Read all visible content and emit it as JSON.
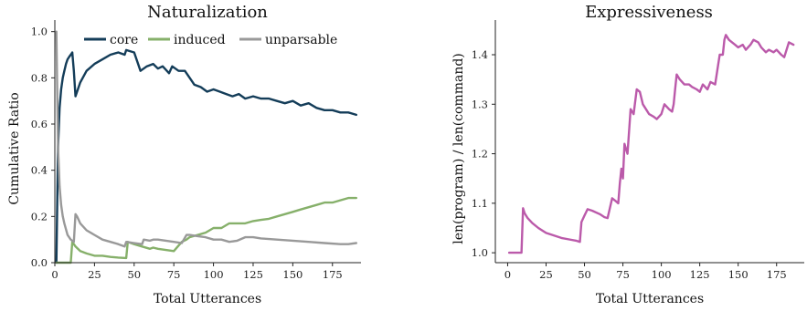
{
  "chart_data": [
    {
      "type": "line",
      "title": "Naturalization",
      "xlabel": "Total Utterances",
      "ylabel": "Cumulative Ratio",
      "xlim": [
        0,
        193
      ],
      "ylim": [
        0,
        1.05
      ],
      "xticks": [
        0,
        25,
        50,
        75,
        100,
        125,
        150,
        175
      ],
      "yticks": [
        0.0,
        0.2,
        0.4,
        0.6,
        0.8,
        1.0
      ],
      "grid": false,
      "legend_position": "top",
      "series": [
        {
          "name": "core",
          "color": "#143d59",
          "x": [
            1,
            2,
            3,
            4,
            5,
            6,
            7,
            8,
            9,
            10,
            11,
            12,
            13,
            16,
            20,
            25,
            30,
            35,
            40,
            44,
            45,
            50,
            54,
            58,
            62,
            65,
            68,
            72,
            74,
            78,
            82,
            86,
            88,
            92,
            96,
            100,
            104,
            108,
            112,
            116,
            120,
            125,
            130,
            135,
            140,
            145,
            150,
            155,
            160,
            165,
            170,
            175,
            180,
            185,
            190
          ],
          "y": [
            0.0,
            0.5,
            0.67,
            0.75,
            0.8,
            0.83,
            0.86,
            0.88,
            0.89,
            0.9,
            0.91,
            0.83,
            0.72,
            0.78,
            0.83,
            0.86,
            0.88,
            0.9,
            0.91,
            0.9,
            0.92,
            0.91,
            0.83,
            0.85,
            0.86,
            0.84,
            0.85,
            0.82,
            0.85,
            0.83,
            0.83,
            0.79,
            0.77,
            0.76,
            0.74,
            0.75,
            0.74,
            0.73,
            0.72,
            0.73,
            0.71,
            0.72,
            0.71,
            0.71,
            0.7,
            0.69,
            0.7,
            0.68,
            0.69,
            0.67,
            0.66,
            0.66,
            0.65,
            0.65,
            0.64
          ]
        },
        {
          "name": "induced",
          "color": "#86b06a",
          "x": [
            1,
            5,
            10,
            11,
            12,
            13,
            16,
            20,
            25,
            30,
            35,
            40,
            45,
            46,
            50,
            55,
            60,
            62,
            65,
            70,
            75,
            80,
            83,
            85,
            90,
            95,
            100,
            105,
            110,
            115,
            120,
            125,
            130,
            135,
            140,
            145,
            150,
            155,
            160,
            165,
            170,
            175,
            180,
            185,
            190
          ],
          "y": [
            0.0,
            0.0,
            0.0,
            0.09,
            0.08,
            0.07,
            0.05,
            0.04,
            0.03,
            0.03,
            0.025,
            0.022,
            0.02,
            0.09,
            0.08,
            0.07,
            0.06,
            0.065,
            0.06,
            0.055,
            0.05,
            0.09,
            0.1,
            0.11,
            0.12,
            0.13,
            0.15,
            0.15,
            0.17,
            0.17,
            0.17,
            0.18,
            0.185,
            0.19,
            0.2,
            0.21,
            0.22,
            0.23,
            0.24,
            0.25,
            0.26,
            0.26,
            0.27,
            0.28,
            0.28
          ]
        },
        {
          "name": "unparsable",
          "color": "#999999",
          "x": [
            1,
            2,
            3,
            4,
            5,
            6,
            8,
            10,
            12,
            13,
            14,
            16,
            20,
            25,
            30,
            35,
            40,
            44,
            45,
            50,
            55,
            56,
            60,
            62,
            65,
            70,
            75,
            80,
            83,
            85,
            90,
            95,
            100,
            105,
            110,
            115,
            120,
            125,
            130,
            140,
            150,
            160,
            170,
            180,
            185,
            190
          ],
          "y": [
            1.0,
            0.5,
            0.33,
            0.25,
            0.2,
            0.17,
            0.12,
            0.1,
            0.09,
            0.21,
            0.2,
            0.17,
            0.14,
            0.12,
            0.1,
            0.09,
            0.08,
            0.07,
            0.09,
            0.085,
            0.08,
            0.1,
            0.095,
            0.1,
            0.1,
            0.095,
            0.09,
            0.085,
            0.12,
            0.12,
            0.115,
            0.11,
            0.1,
            0.1,
            0.09,
            0.095,
            0.11,
            0.11,
            0.105,
            0.1,
            0.095,
            0.09,
            0.085,
            0.08,
            0.08,
            0.085
          ]
        }
      ]
    },
    {
      "type": "line",
      "title": "Expressiveness",
      "xlabel": "Total Utterances",
      "ylabel": "len(program) / len(command)",
      "xlim": [
        -8,
        193
      ],
      "ylim": [
        0.98,
        1.47
      ],
      "xticks": [
        0,
        25,
        50,
        75,
        100,
        125,
        150,
        175
      ],
      "yticks": [
        1.0,
        1.1,
        1.2,
        1.3,
        1.4
      ],
      "grid": false,
      "series": [
        {
          "color": "#bb5aaa",
          "x": [
            1,
            5,
            9,
            10,
            11,
            13,
            16,
            20,
            25,
            30,
            35,
            40,
            45,
            47,
            48,
            50,
            52,
            55,
            60,
            63,
            65,
            68,
            70,
            72,
            73,
            74,
            75,
            76,
            77,
            78,
            80,
            82,
            84,
            86,
            88,
            90,
            92,
            95,
            97,
            100,
            102,
            105,
            107,
            108,
            109,
            110,
            112,
            115,
            118,
            120,
            123,
            125,
            127,
            130,
            132,
            135,
            137,
            138,
            140,
            141,
            142,
            144,
            146,
            148,
            150,
            153,
            155,
            158,
            160,
            163,
            165,
            168,
            170,
            173,
            175,
            178,
            180,
            183,
            186
          ],
          "y": [
            1.0,
            1.0,
            1.0,
            1.09,
            1.08,
            1.07,
            1.06,
            1.05,
            1.04,
            1.035,
            1.03,
            1.027,
            1.024,
            1.022,
            1.062,
            1.075,
            1.088,
            1.085,
            1.078,
            1.072,
            1.07,
            1.11,
            1.105,
            1.1,
            1.14,
            1.17,
            1.15,
            1.22,
            1.21,
            1.2,
            1.29,
            1.28,
            1.33,
            1.325,
            1.3,
            1.29,
            1.28,
            1.275,
            1.27,
            1.28,
            1.3,
            1.29,
            1.285,
            1.3,
            1.33,
            1.36,
            1.35,
            1.34,
            1.34,
            1.335,
            1.33,
            1.325,
            1.34,
            1.33,
            1.345,
            1.34,
            1.38,
            1.4,
            1.4,
            1.43,
            1.44,
            1.43,
            1.425,
            1.42,
            1.415,
            1.42,
            1.41,
            1.42,
            1.43,
            1.425,
            1.415,
            1.405,
            1.41,
            1.405,
            1.41,
            1.4,
            1.395,
            1.425,
            1.42
          ]
        }
      ]
    }
  ]
}
